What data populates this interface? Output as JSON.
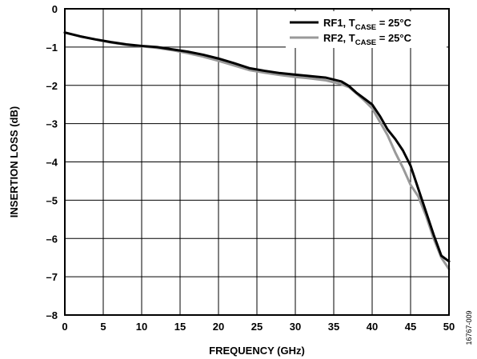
{
  "chart_data": {
    "type": "line",
    "xlabel": "FREQUENCY (GHz)",
    "ylabel": "INSERTION LOSS (dB)",
    "xlim": [
      0,
      50
    ],
    "ylim": [
      -8,
      0
    ],
    "x_ticks": [
      "0",
      "5",
      "10",
      "15",
      "20",
      "25",
      "30",
      "35",
      "40",
      "45",
      "50"
    ],
    "y_ticks": [
      "0",
      "–1",
      "–2",
      "–3",
      "–4",
      "–5",
      "–6",
      "–7",
      "–8"
    ],
    "grid": true,
    "legend_position": "top-right",
    "series": [
      {
        "name": "RF1, T_CASE = 25°C",
        "legend": {
          "main": "RF1, T",
          "sub": "CASE",
          "tail": " = 25°C"
        },
        "color": "#000000",
        "x": [
          0,
          2,
          4,
          6,
          8,
          10,
          12,
          14,
          16,
          18,
          20,
          22,
          24,
          26,
          28,
          30,
          32,
          34,
          35,
          36,
          37,
          38,
          39,
          40,
          41,
          42,
          43,
          44,
          45,
          46,
          47,
          48,
          49,
          50
        ],
        "y": [
          -0.62,
          -0.72,
          -0.8,
          -0.87,
          -0.93,
          -0.97,
          -1.0,
          -1.06,
          -1.12,
          -1.2,
          -1.3,
          -1.42,
          -1.55,
          -1.62,
          -1.68,
          -1.72,
          -1.76,
          -1.8,
          -1.85,
          -1.9,
          -2.02,
          -2.2,
          -2.35,
          -2.5,
          -2.8,
          -3.15,
          -3.4,
          -3.7,
          -4.1,
          -4.7,
          -5.3,
          -5.9,
          -6.45,
          -6.6
        ]
      },
      {
        "name": "RF2, T_CASE = 25°C",
        "legend": {
          "main": "RF2, T",
          "sub": "CASE",
          "tail": " = 25°C"
        },
        "color": "#999999",
        "x": [
          0,
          2,
          4,
          6,
          8,
          10,
          12,
          14,
          16,
          18,
          20,
          22,
          24,
          26,
          28,
          30,
          32,
          34,
          35,
          36,
          37,
          38,
          39,
          40,
          41,
          42,
          43,
          44,
          45,
          46,
          47,
          48,
          49,
          50
        ],
        "y": [
          -0.62,
          -0.72,
          -0.8,
          -0.88,
          -0.94,
          -0.98,
          -1.02,
          -1.08,
          -1.16,
          -1.25,
          -1.36,
          -1.48,
          -1.6,
          -1.67,
          -1.73,
          -1.78,
          -1.82,
          -1.87,
          -1.92,
          -1.97,
          -2.05,
          -2.22,
          -2.4,
          -2.6,
          -2.95,
          -3.3,
          -3.75,
          -4.15,
          -4.6,
          -4.9,
          -5.4,
          -6.0,
          -6.5,
          -6.8
        ]
      }
    ]
  },
  "figure_id": "16767-009"
}
